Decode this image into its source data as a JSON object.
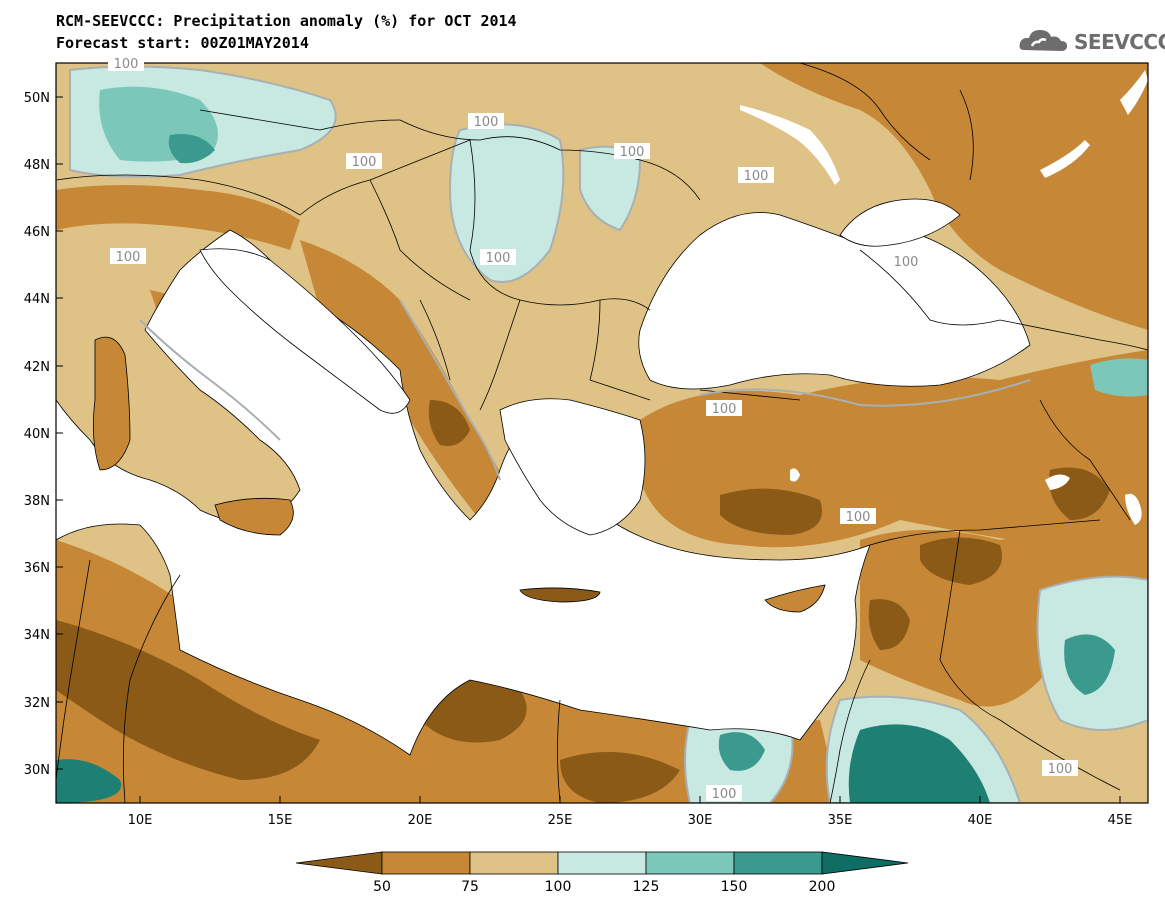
{
  "header": {
    "title_line1": "RCM-SEEVCCC: Precipitation anomaly (%) for OCT 2014",
    "title_line2": "Forecast start: 00Z01MAY2014",
    "logo_text": "SEEVCCC"
  },
  "map": {
    "lon_ticks": [
      "10E",
      "15E",
      "20E",
      "25E",
      "30E",
      "35E",
      "40E",
      "45E"
    ],
    "lat_ticks": [
      "50N",
      "48N",
      "46N",
      "44N",
      "42N",
      "40N",
      "38N",
      "36N",
      "34N",
      "32N",
      "30N"
    ],
    "contour_labels": [
      "100",
      "100",
      "100",
      "100",
      "100",
      "100",
      "100",
      "100",
      "100",
      "100",
      "100",
      "100"
    ]
  },
  "colorbar": {
    "labels": [
      "50",
      "75",
      "100",
      "125",
      "150",
      "200"
    ],
    "colors": [
      "#8b5a17",
      "#c68736",
      "#dfc285",
      "#c7e9e1",
      "#7bc8bb",
      "#3a9a8e",
      "#0f6e64"
    ]
  },
  "colors": {
    "sea": "#ffffff",
    "land_base": "#dfc285",
    "dry": "#c68736",
    "very_dry": "#8b5a17",
    "wet": "#c7e9e1",
    "wetter": "#7bc8bb",
    "very_wet": "#1e7f73"
  }
}
